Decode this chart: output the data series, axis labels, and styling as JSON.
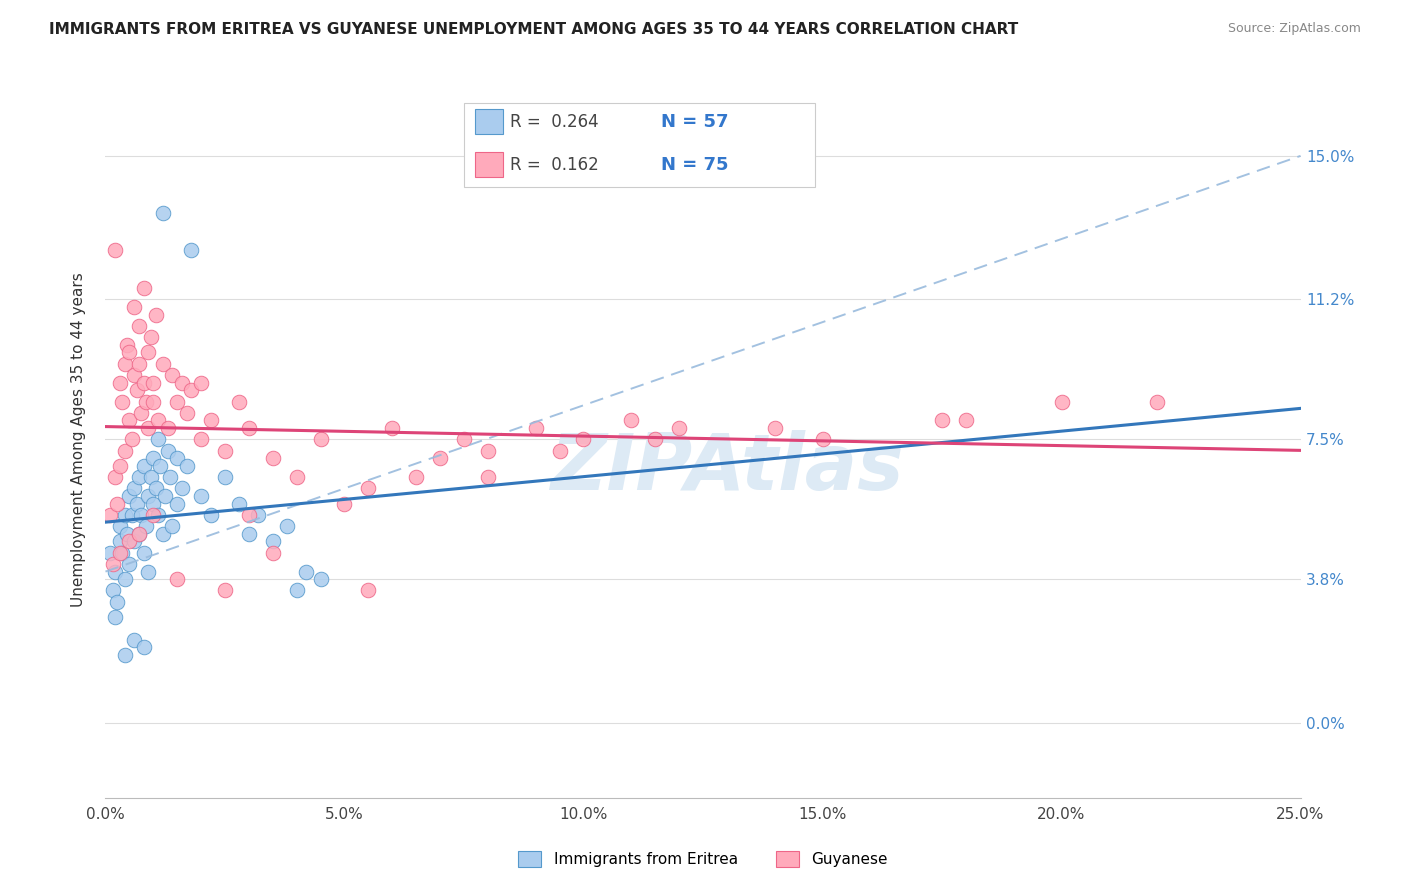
{
  "title": "IMMIGRANTS FROM ERITREA VS GUYANESE UNEMPLOYMENT AMONG AGES 35 TO 44 YEARS CORRELATION CHART",
  "source": "Source: ZipAtlas.com",
  "ylabel": "Unemployment Among Ages 35 to 44 years",
  "R1": "0.264",
  "N1": "57",
  "R2": "0.162",
  "N2": "75",
  "color_blue_fill": "#aaccee",
  "color_blue_edge": "#5599cc",
  "color_blue_line": "#3377bb",
  "color_pink_fill": "#ffaabb",
  "color_pink_edge": "#ee6688",
  "color_pink_line": "#dd4477",
  "color_dashed": "#99bbdd",
  "legend1_label": "Immigrants from Eritrea",
  "legend2_label": "Guyanese",
  "xlim": [
    0,
    25
  ],
  "ylim": [
    -2.0,
    17.0
  ],
  "x_ticks": [
    0,
    5,
    10,
    15,
    20,
    25
  ],
  "x_tick_labels": [
    "0.0%",
    "5.0%",
    "10.0%",
    "15.0%",
    "20.0%",
    "25.0%"
  ],
  "y_ticks": [
    0,
    3.8,
    7.5,
    11.2,
    15.0
  ],
  "y_tick_labels": [
    "0.0%",
    "3.8%",
    "7.5%",
    "11.2%",
    "15.0%"
  ],
  "eritrea_x": [
    0.1,
    0.15,
    0.2,
    0.2,
    0.25,
    0.3,
    0.3,
    0.35,
    0.4,
    0.4,
    0.45,
    0.5,
    0.5,
    0.55,
    0.6,
    0.6,
    0.65,
    0.7,
    0.7,
    0.75,
    0.8,
    0.8,
    0.85,
    0.9,
    0.9,
    0.95,
    1.0,
    1.0,
    1.05,
    1.1,
    1.1,
    1.15,
    1.2,
    1.25,
    1.3,
    1.35,
    1.4,
    1.5,
    1.5,
    1.6,
    1.7,
    1.8,
    2.0,
    2.2,
    2.5,
    2.8,
    3.0,
    3.2,
    3.5,
    3.8,
    4.0,
    4.2,
    4.5,
    0.4,
    0.6,
    0.8,
    1.2
  ],
  "eritrea_y": [
    4.5,
    3.5,
    2.8,
    4.0,
    3.2,
    5.2,
    4.8,
    4.5,
    3.8,
    5.5,
    5.0,
    4.2,
    6.0,
    5.5,
    4.8,
    6.2,
    5.8,
    5.0,
    6.5,
    5.5,
    4.5,
    6.8,
    5.2,
    6.0,
    4.0,
    6.5,
    5.8,
    7.0,
    6.2,
    5.5,
    7.5,
    6.8,
    5.0,
    6.0,
    7.2,
    6.5,
    5.2,
    5.8,
    7.0,
    6.2,
    6.8,
    12.5,
    6.0,
    5.5,
    6.5,
    5.8,
    5.0,
    5.5,
    4.8,
    5.2,
    3.5,
    4.0,
    3.8,
    1.8,
    2.2,
    2.0,
    13.5
  ],
  "guyanese_x": [
    0.1,
    0.15,
    0.2,
    0.2,
    0.25,
    0.3,
    0.3,
    0.35,
    0.4,
    0.4,
    0.45,
    0.5,
    0.5,
    0.55,
    0.6,
    0.6,
    0.65,
    0.7,
    0.7,
    0.75,
    0.8,
    0.8,
    0.85,
    0.9,
    0.9,
    0.95,
    1.0,
    1.0,
    1.05,
    1.1,
    1.2,
    1.3,
    1.4,
    1.5,
    1.6,
    1.7,
    1.8,
    2.0,
    2.0,
    2.2,
    2.5,
    2.8,
    3.0,
    3.0,
    3.5,
    4.0,
    4.5,
    5.0,
    5.5,
    6.0,
    6.5,
    7.0,
    7.5,
    8.0,
    9.0,
    10.0,
    11.0,
    12.0,
    15.0,
    17.5,
    20.0,
    0.3,
    0.5,
    0.7,
    1.0,
    1.5,
    2.5,
    3.5,
    5.5,
    8.0,
    9.5,
    11.5,
    14.0,
    18.0,
    22.0
  ],
  "guyanese_y": [
    5.5,
    4.2,
    12.5,
    6.5,
    5.8,
    9.0,
    6.8,
    8.5,
    7.2,
    9.5,
    10.0,
    8.0,
    9.8,
    7.5,
    9.2,
    11.0,
    8.8,
    9.5,
    10.5,
    8.2,
    9.0,
    11.5,
    8.5,
    9.8,
    7.8,
    10.2,
    8.5,
    9.0,
    10.8,
    8.0,
    9.5,
    7.8,
    9.2,
    8.5,
    9.0,
    8.2,
    8.8,
    7.5,
    9.0,
    8.0,
    7.2,
    8.5,
    7.8,
    5.5,
    7.0,
    6.5,
    7.5,
    5.8,
    6.2,
    7.8,
    6.5,
    7.0,
    7.5,
    7.2,
    7.8,
    7.5,
    8.0,
    7.8,
    7.5,
    8.0,
    8.5,
    4.5,
    4.8,
    5.0,
    5.5,
    3.8,
    3.5,
    4.5,
    3.5,
    6.5,
    7.2,
    7.5,
    7.8,
    8.0,
    8.5
  ]
}
